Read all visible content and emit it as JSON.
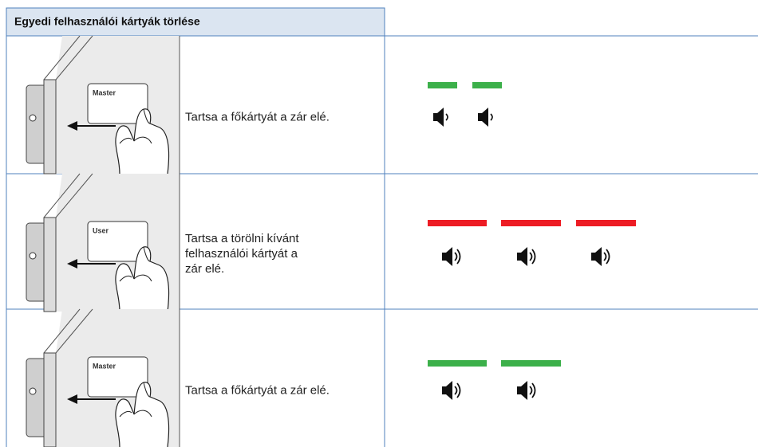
{
  "header": {
    "title": "Egyedi felhasználói kártyák törlése"
  },
  "rows": [
    {
      "card": "Master",
      "instruction": [
        "Tartsa a főkártyát a zár elé."
      ]
    },
    {
      "card": "User",
      "instruction": [
        "Tartsa a törölni kívánt",
        "felhasználói kártyát a",
        "zár elé."
      ]
    },
    {
      "card": "Master",
      "instruction": [
        "Tartsa a főkártyát a zár elé."
      ]
    }
  ]
}
